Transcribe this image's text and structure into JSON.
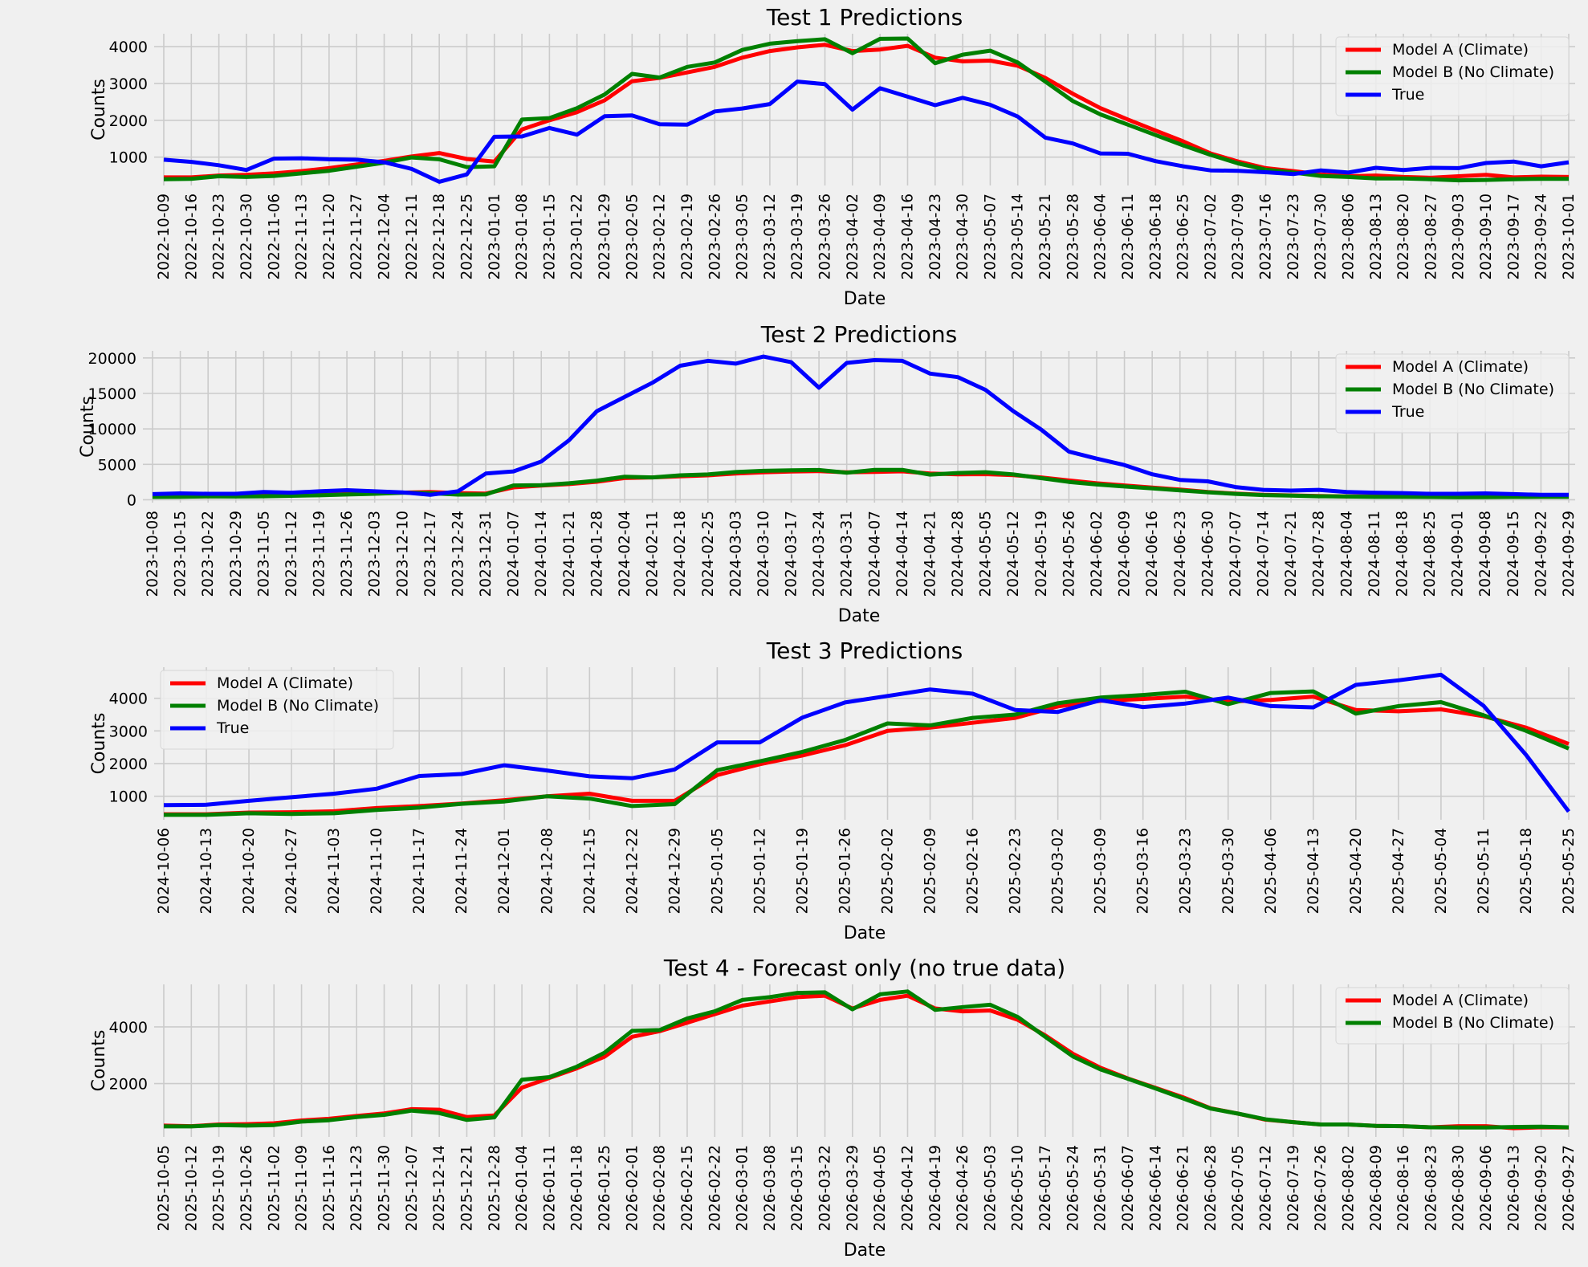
{
  "colors": {
    "model_a": "#ff0000",
    "model_b": "#008000",
    "true": "#0000ff",
    "background": "#f0f0f0",
    "grid": "#cbcbcb"
  },
  "chart_data": [
    {
      "type": "line",
      "title": "Test 1 Predictions",
      "xlabel": "Date",
      "ylabel": "Counts",
      "legend_position": "top-right",
      "grid": true,
      "yticks": [
        1000,
        2000,
        3000,
        4000
      ],
      "ylim": [
        230,
        4350
      ],
      "x": [
        "2022-10-09",
        "2022-10-16",
        "2022-10-23",
        "2022-10-30",
        "2022-11-06",
        "2022-11-13",
        "2022-11-20",
        "2022-11-27",
        "2022-12-04",
        "2022-12-11",
        "2022-12-18",
        "2022-12-25",
        "2023-01-01",
        "2023-01-08",
        "2023-01-15",
        "2023-01-22",
        "2023-01-29",
        "2023-02-05",
        "2023-02-12",
        "2023-02-19",
        "2023-02-26",
        "2023-03-05",
        "2023-03-12",
        "2023-03-19",
        "2023-03-26",
        "2023-04-02",
        "2023-04-09",
        "2023-04-16",
        "2023-04-23",
        "2023-04-30",
        "2023-05-07",
        "2023-05-14",
        "2023-05-21",
        "2023-05-28",
        "2023-06-04",
        "2023-06-11",
        "2023-06-18",
        "2023-06-25",
        "2023-07-02",
        "2023-07-09",
        "2023-07-16",
        "2023-07-23",
        "2023-07-30",
        "2023-08-06",
        "2023-08-13",
        "2023-08-20",
        "2023-08-27",
        "2023-09-03",
        "2023-09-10",
        "2023-09-17",
        "2023-09-24",
        "2023-10-01"
      ],
      "series": [
        {
          "name": "Model A (Climate)",
          "color": "#ff0000",
          "values": [
            450,
            450,
            500,
            520,
            560,
            620,
            700,
            800,
            900,
            1020,
            1110,
            950,
            880,
            1750,
            2000,
            2220,
            2540,
            3060,
            3150,
            3300,
            3450,
            3700,
            3880,
            3980,
            4050,
            3880,
            3920,
            4020,
            3700,
            3600,
            3620,
            3480,
            3150,
            2720,
            2330,
            2020,
            1720,
            1430,
            1100,
            880,
            700,
            620,
            530,
            480,
            500,
            460,
            440,
            480,
            520,
            450,
            470,
            460
          ]
        },
        {
          "name": "Model B (No Climate)",
          "color": "#008000",
          "values": [
            400,
            410,
            480,
            460,
            490,
            560,
            630,
            740,
            850,
            990,
            940,
            730,
            750,
            2020,
            2060,
            2330,
            2700,
            3260,
            3160,
            3450,
            3570,
            3910,
            4080,
            4150,
            4200,
            3820,
            4210,
            4220,
            3550,
            3780,
            3890,
            3570,
            3050,
            2520,
            2160,
            1880,
            1600,
            1320,
            1060,
            830,
            660,
            580,
            490,
            460,
            420,
            420,
            400,
            370,
            380,
            400,
            410,
            410
          ]
        },
        {
          "name": "True",
          "color": "#0000ff",
          "values": [
            930,
            870,
            780,
            650,
            960,
            970,
            940,
            930,
            860,
            680,
            330,
            530,
            1550,
            1560,
            1790,
            1610,
            2110,
            2130,
            1890,
            1880,
            2240,
            2320,
            2440,
            3050,
            2980,
            2290,
            2870,
            2640,
            2410,
            2610,
            2420,
            2100,
            1530,
            1370,
            1100,
            1090,
            890,
            750,
            640,
            630,
            590,
            540,
            640,
            580,
            710,
            650,
            710,
            700,
            840,
            880,
            750,
            860
          ]
        }
      ]
    },
    {
      "type": "line",
      "title": "Test 2 Predictions",
      "xlabel": "Date",
      "ylabel": "Counts",
      "legend_position": "top-right",
      "grid": true,
      "yticks": [
        0,
        5000,
        10000,
        15000,
        20000
      ],
      "ylim": [
        -400,
        21000
      ],
      "x": [
        "2023-10-08",
        "2023-10-15",
        "2023-10-22",
        "2023-10-29",
        "2023-11-05",
        "2023-11-12",
        "2023-11-19",
        "2023-11-26",
        "2023-12-03",
        "2023-12-10",
        "2023-12-17",
        "2023-12-24",
        "2023-12-31",
        "2024-01-07",
        "2024-01-14",
        "2024-01-21",
        "2024-01-28",
        "2024-02-04",
        "2024-02-11",
        "2024-02-18",
        "2024-02-25",
        "2024-03-03",
        "2024-03-10",
        "2024-03-17",
        "2024-03-24",
        "2024-03-31",
        "2024-04-07",
        "2024-04-14",
        "2024-04-21",
        "2024-04-28",
        "2024-05-05",
        "2024-05-12",
        "2024-05-19",
        "2024-05-26",
        "2024-06-02",
        "2024-06-09",
        "2024-06-16",
        "2024-06-23",
        "2024-06-30",
        "2024-07-07",
        "2024-07-14",
        "2024-07-21",
        "2024-07-28",
        "2024-08-04",
        "2024-08-11",
        "2024-08-18",
        "2024-08-25",
        "2024-09-01",
        "2024-09-08",
        "2024-09-15",
        "2024-09-22",
        "2024-09-29"
      ],
      "series": [
        {
          "name": "Model A (Climate)",
          "color": "#ff0000",
          "values": [
            450,
            450,
            500,
            520,
            560,
            620,
            700,
            800,
            900,
            1020,
            1110,
            950,
            880,
            1750,
            2000,
            2220,
            2540,
            3060,
            3150,
            3300,
            3450,
            3700,
            3880,
            3980,
            4050,
            3880,
            3920,
            4020,
            3700,
            3600,
            3620,
            3480,
            3150,
            2720,
            2330,
            2020,
            1720,
            1430,
            1100,
            880,
            700,
            620,
            530,
            480,
            500,
            460,
            440,
            480,
            520,
            450,
            470,
            460
          ]
        },
        {
          "name": "Model B (No Climate)",
          "color": "#008000",
          "values": [
            400,
            410,
            480,
            460,
            490,
            560,
            630,
            740,
            850,
            990,
            940,
            730,
            750,
            2020,
            2060,
            2330,
            2700,
            3260,
            3160,
            3450,
            3570,
            3910,
            4080,
            4150,
            4200,
            3820,
            4210,
            4220,
            3550,
            3780,
            3890,
            3570,
            3050,
            2520,
            2160,
            1880,
            1600,
            1320,
            1060,
            830,
            660,
            580,
            490,
            460,
            420,
            420,
            400,
            370,
            380,
            400,
            410,
            410
          ]
        },
        {
          "name": "True",
          "color": "#0000ff",
          "values": [
            800,
            900,
            850,
            850,
            1100,
            1000,
            1200,
            1350,
            1200,
            1050,
            700,
            1200,
            3700,
            4000,
            5400,
            8400,
            12500,
            14500,
            16500,
            18900,
            19600,
            19200,
            20200,
            19400,
            15800,
            19300,
            19700,
            19600,
            17800,
            17300,
            15500,
            12500,
            9900,
            6800,
            5800,
            4900,
            3600,
            2800,
            2600,
            1800,
            1400,
            1300,
            1400,
            1100,
            1000,
            950,
            850,
            850,
            900,
            800,
            700,
            700
          ]
        }
      ]
    },
    {
      "type": "line",
      "title": "Test 3 Predictions",
      "xlabel": "Date",
      "ylabel": "Counts",
      "legend_position": "top-left",
      "grid": true,
      "yticks": [
        1000,
        2000,
        3000,
        4000
      ],
      "ylim": [
        280,
        4950
      ],
      "x": [
        "2024-10-06",
        "2024-10-13",
        "2024-10-20",
        "2024-10-27",
        "2024-11-03",
        "2024-11-10",
        "2024-11-17",
        "2024-11-24",
        "2024-12-01",
        "2024-12-08",
        "2024-12-15",
        "2024-12-22",
        "2024-12-29",
        "2025-01-05",
        "2025-01-12",
        "2025-01-19",
        "2025-01-26",
        "2025-02-02",
        "2025-02-09",
        "2025-02-16",
        "2025-02-23",
        "2025-03-02",
        "2025-03-09",
        "2025-03-16",
        "2025-03-23",
        "2025-03-30",
        "2025-04-06",
        "2025-04-13",
        "2025-04-20",
        "2025-04-27",
        "2025-05-04",
        "2025-05-11",
        "2025-05-18",
        "2025-05-25"
      ],
      "series": [
        {
          "name": "Model A (Climate)",
          "color": "#ff0000",
          "values": [
            450,
            450,
            500,
            510,
            540,
            640,
            700,
            780,
            880,
            1000,
            1080,
            860,
            860,
            1650,
            1980,
            2250,
            2560,
            3000,
            3100,
            3250,
            3400,
            3750,
            3920,
            3980,
            4050,
            3900,
            3950,
            4050,
            3640,
            3600,
            3660,
            3450,
            3100,
            2600
          ]
        },
        {
          "name": "Model B (No Climate)",
          "color": "#008000",
          "values": [
            430,
            430,
            480,
            460,
            480,
            580,
            650,
            770,
            840,
            1000,
            930,
            700,
            760,
            1800,
            2070,
            2360,
            2720,
            3230,
            3170,
            3400,
            3500,
            3850,
            4020,
            4100,
            4200,
            3820,
            4160,
            4210,
            3530,
            3760,
            3880,
            3480,
            3000,
            2460
          ]
        },
        {
          "name": "True",
          "color": "#0000ff",
          "values": [
            730,
            740,
            860,
            970,
            1080,
            1230,
            1620,
            1680,
            1950,
            1790,
            1610,
            1550,
            1820,
            2650,
            2650,
            3410,
            3870,
            4070,
            4270,
            4140,
            3640,
            3580,
            3940,
            3730,
            3840,
            4020,
            3760,
            3720,
            4410,
            4550,
            4720,
            3770,
            2260,
            530
          ]
        }
      ]
    },
    {
      "type": "line",
      "title": "Test 4 - Forecast only (no true data)",
      "xlabel": "Date",
      "ylabel": "Counts",
      "legend_position": "top-right",
      "grid": true,
      "yticks": [
        2000,
        4000
      ],
      "ylim": [
        120,
        5500
      ],
      "x": [
        "2025-10-05",
        "2025-10-12",
        "2025-10-19",
        "2025-10-26",
        "2025-11-02",
        "2025-11-09",
        "2025-11-16",
        "2025-11-23",
        "2025-11-30",
        "2025-12-07",
        "2025-12-14",
        "2025-12-21",
        "2025-12-28",
        "2026-01-04",
        "2026-01-11",
        "2026-01-18",
        "2026-01-25",
        "2026-02-01",
        "2026-02-08",
        "2026-02-15",
        "2026-02-22",
        "2026-03-01",
        "2026-03-08",
        "2026-03-15",
        "2026-03-22",
        "2026-03-29",
        "2026-04-05",
        "2026-04-12",
        "2026-04-19",
        "2026-04-26",
        "2026-05-03",
        "2026-05-10",
        "2026-05-17",
        "2026-05-24",
        "2026-05-31",
        "2026-06-07",
        "2026-06-14",
        "2026-06-21",
        "2026-06-28",
        "2026-07-05",
        "2026-07-12",
        "2026-07-19",
        "2026-07-26",
        "2026-08-02",
        "2026-08-09",
        "2026-08-16",
        "2026-08-23",
        "2026-08-30",
        "2026-09-06",
        "2026-09-13",
        "2026-09-20",
        "2026-09-27"
      ],
      "series": [
        {
          "name": "Model A (Climate)",
          "color": "#ff0000",
          "values": [
            520,
            500,
            560,
            570,
            600,
            700,
            760,
            860,
            950,
            1100,
            1080,
            820,
            880,
            1860,
            2200,
            2540,
            2950,
            3650,
            3850,
            4150,
            4450,
            4750,
            4900,
            5050,
            5100,
            4650,
            4950,
            5100,
            4650,
            4550,
            4580,
            4250,
            3700,
            3050,
            2560,
            2180,
            1850,
            1520,
            1130,
            940,
            730,
            640,
            560,
            560,
            510,
            500,
            460,
            500,
            500,
            430,
            460,
            450
          ]
        },
        {
          "name": "Model B (No Climate)",
          "color": "#008000",
          "values": [
            490,
            490,
            540,
            520,
            540,
            660,
            710,
            820,
            900,
            1050,
            960,
            720,
            810,
            2140,
            2230,
            2600,
            3090,
            3860,
            3890,
            4300,
            4550,
            4950,
            5050,
            5200,
            5220,
            4620,
            5150,
            5250,
            4600,
            4700,
            4780,
            4350,
            3650,
            2960,
            2500,
            2170,
            1830,
            1480,
            1120,
            940,
            740,
            640,
            560,
            560,
            510,
            500,
            460,
            450,
            450,
            470,
            480,
            460
          ]
        }
      ]
    }
  ]
}
